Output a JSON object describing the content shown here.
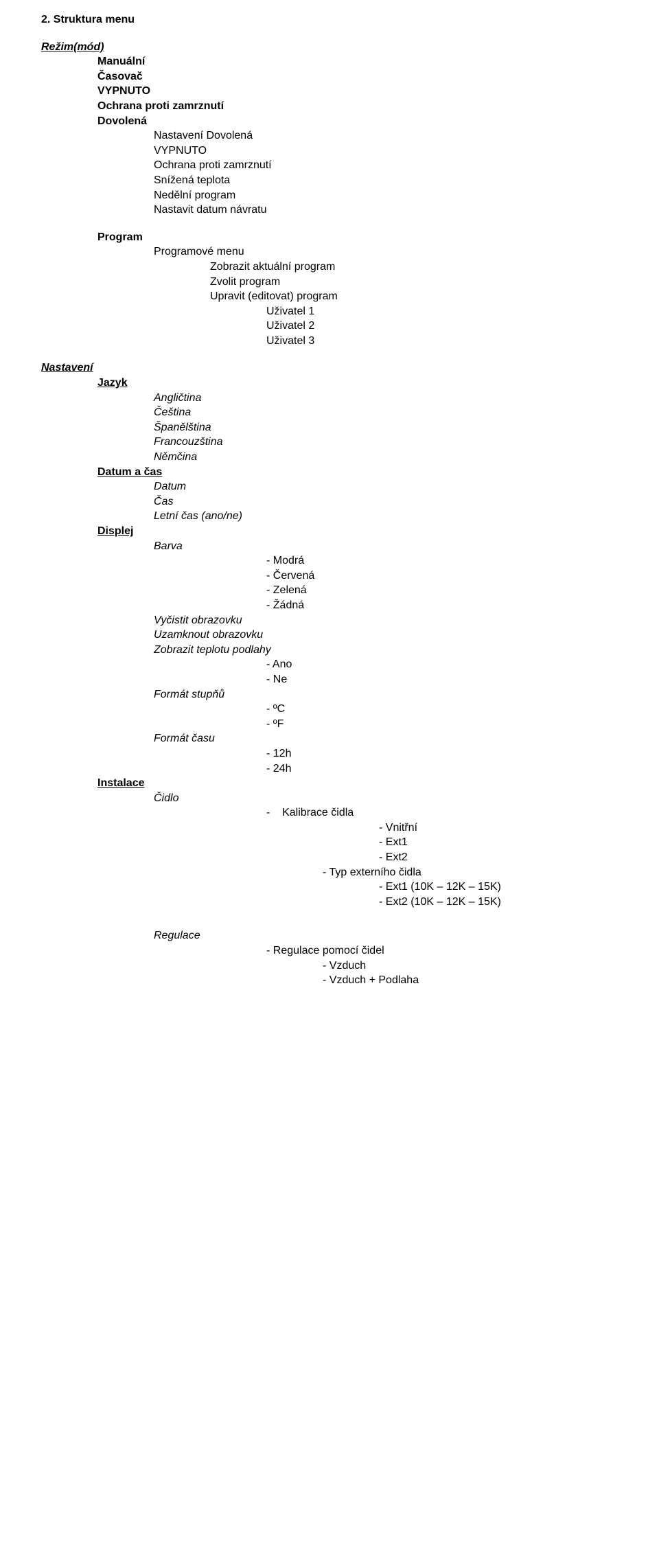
{
  "heading": "2. Struktura menu",
  "rezim": {
    "title": "Režim(mód)",
    "items": [
      "Manuální",
      "Časovač",
      "VYPNUTO",
      "Ochrana proti zamrznutí",
      "Dovolená"
    ],
    "dovolena_sub": [
      "Nastavení Dovolená",
      "VYPNUTO",
      "Ochrana proti zamrznutí",
      "Snížená teplota",
      "Nedělní program",
      "Nastavit datum návratu"
    ]
  },
  "program": {
    "title": "Program",
    "menu_title": "Programové menu",
    "menu_items": [
      "Zobrazit aktuální program",
      "Zvolit program",
      "Upravit (editovat) program"
    ],
    "users": [
      "Uživatel 1",
      "Uživatel 2",
      "Uživatel 3"
    ]
  },
  "nastaveni": {
    "title": "Nastavení",
    "jazyk": {
      "title": "Jazyk",
      "items": [
        "Angličtina",
        "Čeština",
        "Španělština",
        "Francouzština",
        "Němčina"
      ]
    },
    "datum_cas": {
      "title": "Datum a čas",
      "items": [
        "Datum",
        "Čas",
        "Letní čas (ano/ne)"
      ]
    },
    "displej": {
      "title": "Displej",
      "barva_title": "Barva",
      "barva_items": [
        "- Modrá",
        "- Červená",
        "- Zelená",
        "- Žádná"
      ],
      "vycistit": "Vyčistit obrazovku",
      "uzamknout": "Uzamknout obrazovku",
      "zobrazit_podlahy": "Zobrazit teplotu podlahy",
      "ano": "- Ano",
      "ne": "- Ne",
      "format_stupnu": "Formát stupňů",
      "deg_c": "- ºC",
      "deg_f": "- ºF",
      "format_casu": "Formát času",
      "h12": "- 12h",
      "h24": "- 24h"
    },
    "instalace": {
      "title": "Instalace",
      "cidlo_title": "Čidlo",
      "kalibrace": "-    Kalibrace čidla",
      "kalibrace_items": [
        "- Vnitřní",
        "- Ext1",
        "- Ext2"
      ],
      "typ_ext": "- Typ externího čidla",
      "typ_ext_items": [
        "- Ext1 (10K – 12K – 15K)",
        "- Ext2 (10K – 12K – 15K)"
      ]
    },
    "regulace": {
      "title": "Regulace",
      "line1": "- Regulace pomocí čidel",
      "items": [
        "- Vzduch",
        "- Vzduch + Podlaha"
      ]
    }
  }
}
